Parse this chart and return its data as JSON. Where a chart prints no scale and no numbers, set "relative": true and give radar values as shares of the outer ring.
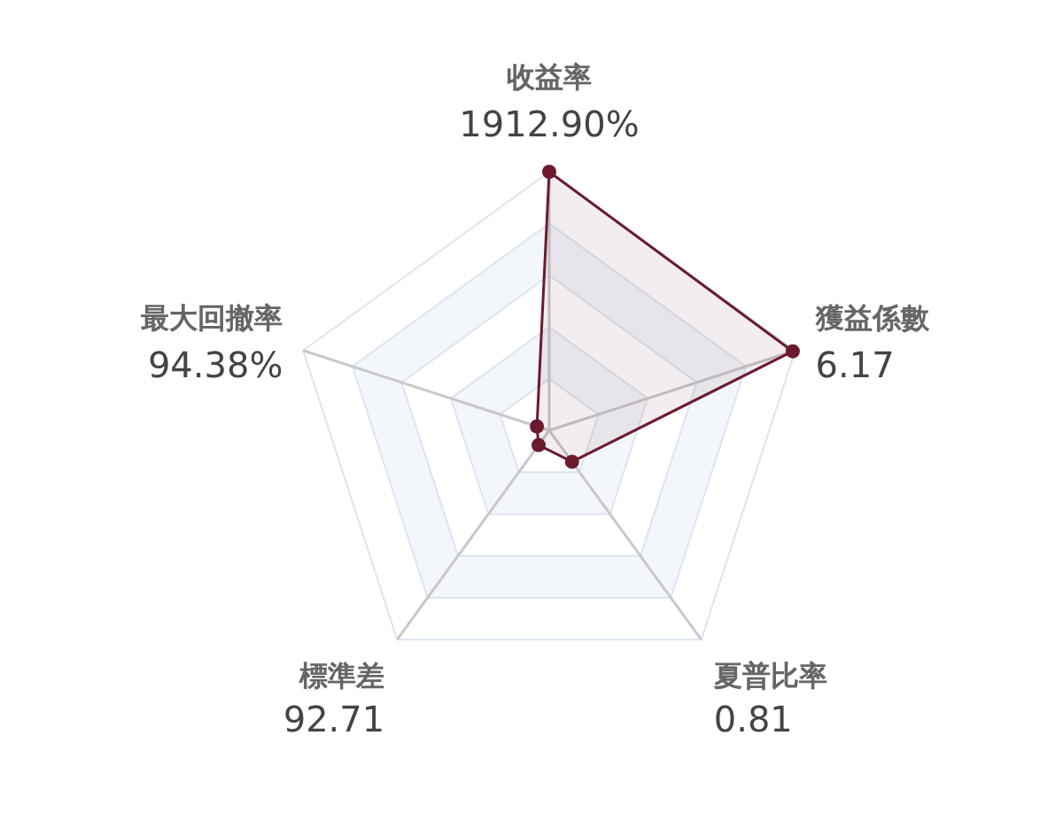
{
  "chart_data": {
    "type": "radar",
    "relative": true,
    "grid": true,
    "marker": "circle",
    "categories": [
      "收益率\n1912.90%",
      "獲益係數\n6.17",
      "夏普比率\n0.81",
      "標準差\n92.71",
      "最大回撤率\n94.38%"
    ],
    "series": [
      {
        "color": "#6b1a2e",
        "values": [
          1,
          0.99,
          0.15,
          0.07,
          0.05
        ]
      }
    ]
  }
}
